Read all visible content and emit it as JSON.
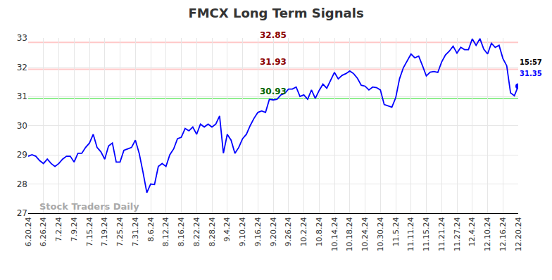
{
  "chart_data": {
    "type": "line",
    "title": "FMCX Long Term Signals",
    "color": "#0000ff",
    "grid": true,
    "categories": [
      "6.20.24",
      null,
      null,
      null,
      "6.26.24",
      null,
      null,
      null,
      "7.2.24",
      null,
      null,
      null,
      "7.9.24",
      null,
      null,
      null,
      "7.15.24",
      null,
      null,
      null,
      "7.19.24",
      null,
      null,
      null,
      "7.25.24",
      null,
      null,
      null,
      "7.31.24",
      null,
      null,
      null,
      "8.6.24",
      null,
      null,
      null,
      "8.12.24",
      null,
      null,
      null,
      "8.16.24",
      null,
      null,
      null,
      "8.22.24",
      null,
      null,
      null,
      "8.28.24",
      null,
      null,
      null,
      "9.4.24",
      null,
      null,
      null,
      "9.10.24",
      null,
      null,
      null,
      "9.16.24",
      null,
      null,
      null,
      "9.20.24",
      null,
      null,
      null,
      "9.26.24",
      null,
      null,
      null,
      "10.2.24",
      null,
      null,
      null,
      "10.8.24",
      null,
      null,
      null,
      "10.14.24",
      null,
      null,
      null,
      "10.18.24",
      null,
      null,
      null,
      "10.24.24",
      null,
      null,
      null,
      "10.30.24",
      null,
      null,
      null,
      "11.5.24",
      null,
      null,
      null,
      "11.11.24",
      null,
      null,
      null,
      "11.15.24",
      null,
      null,
      null,
      "11.21.24",
      null,
      null,
      null,
      "11.27.24",
      null,
      null,
      null,
      "12.4.24",
      null,
      null,
      null,
      "12.10.24",
      null,
      null,
      null,
      "12.16.24",
      null,
      null,
      null,
      "12.20.24"
    ],
    "values": [
      28.95,
      29.0,
      28.95,
      28.8,
      28.7,
      28.85,
      28.7,
      28.6,
      28.7,
      28.85,
      28.95,
      28.95,
      28.75,
      29.05,
      29.05,
      29.25,
      29.4,
      29.7,
      29.25,
      29.1,
      28.85,
      29.3,
      29.4,
      28.75,
      28.75,
      29.15,
      29.2,
      29.25,
      29.5,
      29.05,
      28.4,
      27.7,
      28.0,
      27.98,
      28.6,
      28.7,
      28.6,
      29.0,
      29.2,
      29.55,
      29.6,
      29.9,
      29.82,
      29.95,
      29.7,
      30.05,
      29.95,
      30.05,
      29.95,
      30.05,
      30.33,
      29.05,
      29.7,
      29.5,
      29.05,
      29.25,
      29.55,
      29.7,
      30.0,
      30.25,
      30.45,
      30.5,
      30.45,
      30.9,
      30.88,
      30.9,
      31.05,
      31.1,
      31.25,
      31.25,
      31.32,
      31.0,
      31.05,
      30.9,
      31.22,
      30.93,
      31.2,
      31.42,
      31.28,
      31.55,
      31.82,
      31.6,
      31.72,
      31.78,
      31.87,
      31.78,
      31.62,
      31.38,
      31.35,
      31.22,
      31.32,
      31.3,
      31.22,
      30.72,
      30.68,
      30.63,
      30.95,
      31.6,
      31.98,
      32.2,
      32.45,
      32.32,
      32.38,
      32.05,
      31.7,
      31.83,
      31.85,
      31.82,
      32.18,
      32.42,
      32.55,
      32.72,
      32.48,
      32.68,
      32.6,
      32.6,
      32.97,
      32.75,
      32.98,
      32.62,
      32.45,
      32.82,
      32.68,
      32.75,
      32.3,
      32.05,
      31.12,
      31.02,
      31.35
    ],
    "ylim": [
      27,
      33
    ],
    "yticks": [
      27,
      28,
      29,
      30,
      31,
      32,
      33
    ],
    "levels": [
      {
        "value": 32.85,
        "color": "#8b0000"
      },
      {
        "value": 31.93,
        "color": "#8b0000"
      },
      {
        "value": 30.93,
        "color": "#006400"
      }
    ],
    "last_time": "15:57",
    "watermark": "Stock Traders Daily"
  }
}
